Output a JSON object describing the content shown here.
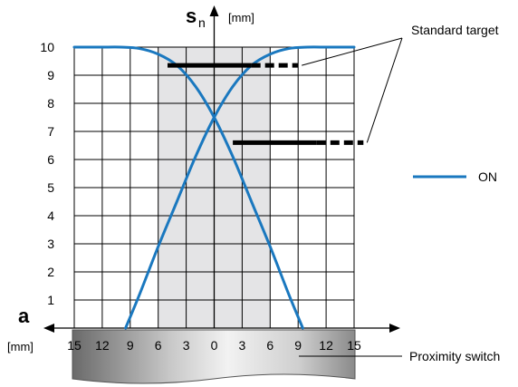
{
  "chart_data": {
    "type": "line",
    "title": "",
    "xlabel": "a",
    "xunit": "[mm]",
    "ylabel": "s",
    "ylabel_sub": "n",
    "yunit": "[mm]",
    "xlim": [
      -15,
      15
    ],
    "ylim": [
      0,
      10
    ],
    "x_ticks": [
      -15,
      -12,
      -9,
      -6,
      -3,
      0,
      3,
      6,
      9,
      12,
      15
    ],
    "x_tick_labels": [
      "15",
      "12",
      "9",
      "6",
      "3",
      "0",
      "3",
      "6",
      "9",
      "12",
      "15"
    ],
    "y_ticks": [
      1,
      2,
      3,
      4,
      5,
      6,
      7,
      8,
      9,
      10
    ],
    "y_tick_labels": [
      "1",
      "2",
      "3",
      "4",
      "5",
      "6",
      "7",
      "8",
      "9",
      "10"
    ],
    "grid": true,
    "series": [
      {
        "name": "ON",
        "color": "#1a78bf",
        "curves": [
          {
            "x": [
              -9.5,
              -8,
              -6,
              -4,
              -2,
              0,
              2,
              4,
              6,
              8,
              10,
              12,
              13.5,
              15
            ],
            "y": [
              0,
              1.2,
              2.9,
              4.5,
              6.1,
              7.5,
              8.6,
              9.35,
              9.75,
              9.95,
              10,
              10,
              10,
              10
            ]
          },
          {
            "x": [
              -15,
              -13.5,
              -12,
              -10,
              -8,
              -6,
              -4,
              -2,
              0,
              2,
              4,
              6,
              8,
              9.5
            ],
            "y": [
              10,
              10,
              10,
              10,
              9.95,
              9.75,
              9.35,
              8.6,
              7.5,
              6.1,
              4.5,
              2.9,
              1.2,
              0
            ]
          }
        ]
      }
    ],
    "shaded_region": {
      "x": [
        -6,
        6
      ],
      "y": [
        0,
        10
      ],
      "color": "#e4e4e6"
    },
    "annotations": {
      "target_label": "Standard target",
      "targets": [
        {
          "x_start": -5,
          "x_solid_end": 4,
          "x_dashed_end": 9,
          "y": 9.35
        },
        {
          "x_start": 2,
          "x_solid_end": 11,
          "x_dashed_end": 16,
          "y": 6.6
        }
      ]
    },
    "legend": {
      "label": "ON",
      "placement": "right"
    },
    "proximity_switch_label": "Proximity switch"
  }
}
